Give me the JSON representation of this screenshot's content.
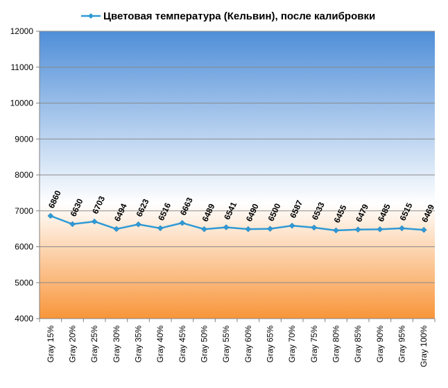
{
  "chart_data": {
    "type": "line",
    "legend_position": "top",
    "grid": true,
    "ylim": [
      4000,
      12000
    ],
    "y_ticks": [
      4000,
      5000,
      6000,
      7000,
      8000,
      9000,
      10000,
      11000,
      12000
    ],
    "categories": [
      "Gray 15%",
      "Gray 20%",
      "Gray 25%",
      "Gray 30%",
      "Gray 35%",
      "Gray 40%",
      "Gray 45%",
      "Gray 50%",
      "Gray 55%",
      "Gray 60%",
      "Gray 65%",
      "Gray 70%",
      "Gray 75%",
      "Gray 80%",
      "Gray 85%",
      "Gray 90%",
      "Gray 95%",
      "Gray 100%"
    ],
    "series": [
      {
        "name": "Цветовая температура (Кельвин), после калибровки",
        "color": "#2E9AD6",
        "values": [
          6860,
          6630,
          6703,
          6494,
          6623,
          6516,
          6663,
          6489,
          6541,
          6490,
          6500,
          6587,
          6533,
          6455,
          6479,
          6485,
          6515,
          6469
        ]
      }
    ],
    "background_gradient": [
      "#4F8ED8",
      "#FFFFFF",
      "#F8953A"
    ]
  }
}
